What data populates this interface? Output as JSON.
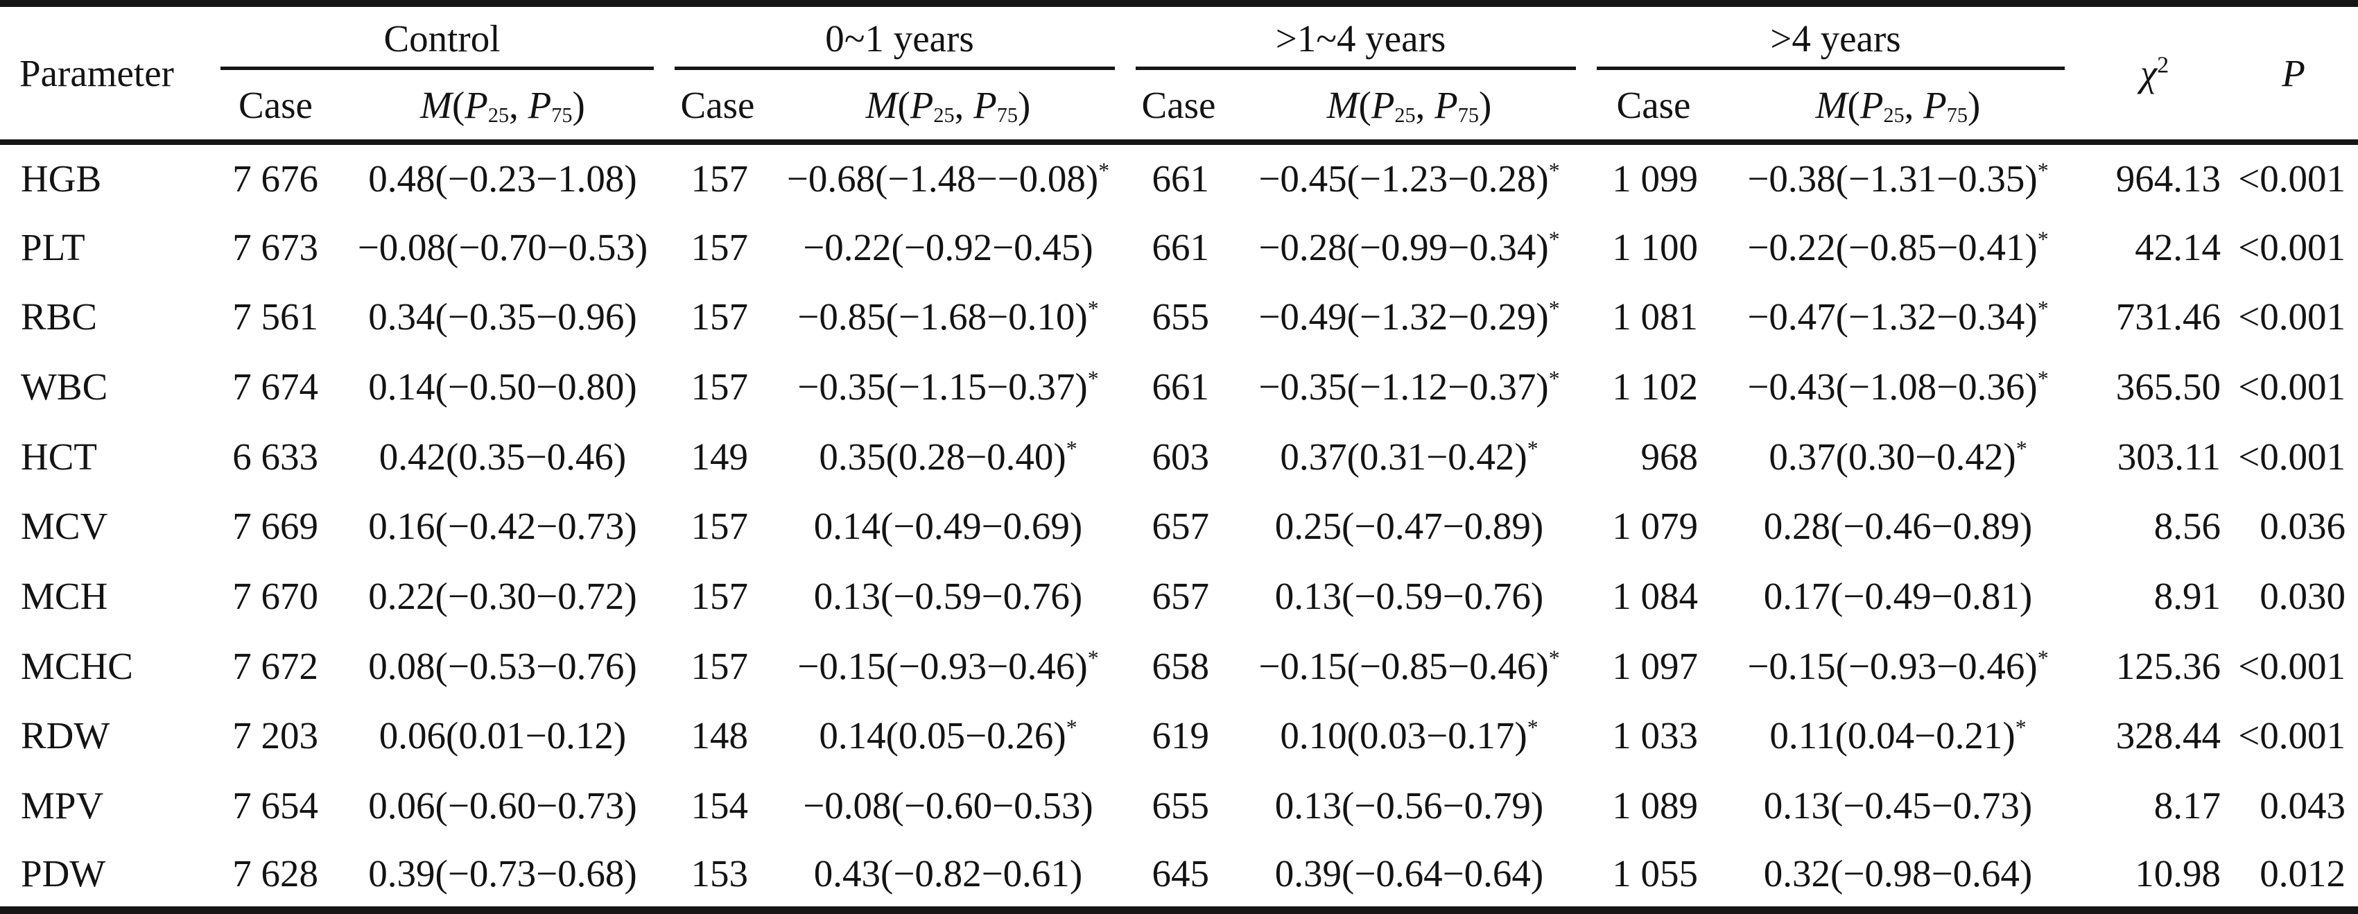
{
  "table": {
    "star_symbol": "*",
    "header": {
      "parameter": "Parameter",
      "groups": [
        "Control",
        "0~1 years",
        ">1~4 years",
        ">4 years"
      ],
      "case_label": "Case",
      "m": {
        "m": "M",
        "open": "(",
        "p": "P",
        "p25": "25",
        "comma": ", ",
        "p75": "75",
        "close": ")"
      },
      "chi2": {
        "chi": "χ",
        "sup": "2"
      },
      "p_label": "P"
    },
    "rows": [
      {
        "param": "HGB",
        "groups": [
          {
            "case": "7 676",
            "m": "0.48(−0.23−1.08)",
            "star": false
          },
          {
            "case": "157",
            "m": "−0.68(−1.48−−0.08)",
            "star": true
          },
          {
            "case": "661",
            "m": "−0.45(−1.23−0.28)",
            "star": true
          },
          {
            "case": "1 099",
            "m": "−0.38(−1.31−0.35)",
            "star": true
          }
        ],
        "chi2": "964.13",
        "p": "<0.001"
      },
      {
        "param": "PLT",
        "groups": [
          {
            "case": "7 673",
            "m": "−0.08(−0.70−0.53)",
            "star": false
          },
          {
            "case": "157",
            "m": "−0.22(−0.92−0.45)",
            "star": false
          },
          {
            "case": "661",
            "m": "−0.28(−0.99−0.34)",
            "star": true
          },
          {
            "case": "1 100",
            "m": "−0.22(−0.85−0.41)",
            "star": true
          }
        ],
        "chi2": "42.14",
        "p": "<0.001"
      },
      {
        "param": "RBC",
        "groups": [
          {
            "case": "7 561",
            "m": "0.34(−0.35−0.96)",
            "star": false
          },
          {
            "case": "157",
            "m": "−0.85(−1.68−0.10)",
            "star": true
          },
          {
            "case": "655",
            "m": "−0.49(−1.32−0.29)",
            "star": true
          },
          {
            "case": "1 081",
            "m": "−0.47(−1.32−0.34)",
            "star": true
          }
        ],
        "chi2": "731.46",
        "p": "<0.001"
      },
      {
        "param": "WBC",
        "groups": [
          {
            "case": "7 674",
            "m": "0.14(−0.50−0.80)",
            "star": false
          },
          {
            "case": "157",
            "m": "−0.35(−1.15−0.37)",
            "star": true
          },
          {
            "case": "661",
            "m": "−0.35(−1.12−0.37)",
            "star": true
          },
          {
            "case": "1 102",
            "m": "−0.43(−1.08−0.36)",
            "star": true
          }
        ],
        "chi2": "365.50",
        "p": "<0.001"
      },
      {
        "param": "HCT",
        "groups": [
          {
            "case": "6 633",
            "m": "0.42(0.35−0.46)",
            "star": false
          },
          {
            "case": "149",
            "m": "0.35(0.28−0.40)",
            "star": true
          },
          {
            "case": "603",
            "m": "0.37(0.31−0.42)",
            "star": true
          },
          {
            "case": "968",
            "m": "0.37(0.30−0.42)",
            "star": true
          }
        ],
        "chi2": "303.11",
        "p": "<0.001"
      },
      {
        "param": "MCV",
        "groups": [
          {
            "case": "7 669",
            "m": "0.16(−0.42−0.73)",
            "star": false
          },
          {
            "case": "157",
            "m": "0.14(−0.49−0.69)",
            "star": false
          },
          {
            "case": "657",
            "m": "0.25(−0.47−0.89)",
            "star": false
          },
          {
            "case": "1 079",
            "m": "0.28(−0.46−0.89)",
            "star": false
          }
        ],
        "chi2": "8.56",
        "p": "0.036"
      },
      {
        "param": "MCH",
        "groups": [
          {
            "case": "7 670",
            "m": "0.22(−0.30−0.72)",
            "star": false
          },
          {
            "case": "157",
            "m": "0.13(−0.59−0.76)",
            "star": false
          },
          {
            "case": "657",
            "m": "0.13(−0.59−0.76)",
            "star": false
          },
          {
            "case": "1 084",
            "m": "0.17(−0.49−0.81)",
            "star": false
          }
        ],
        "chi2": "8.91",
        "p": "0.030"
      },
      {
        "param": "MCHC",
        "groups": [
          {
            "case": "7 672",
            "m": "0.08(−0.53−0.76)",
            "star": false
          },
          {
            "case": "157",
            "m": "−0.15(−0.93−0.46)",
            "star": true
          },
          {
            "case": "658",
            "m": "−0.15(−0.85−0.46)",
            "star": true
          },
          {
            "case": "1 097",
            "m": "−0.15(−0.93−0.46)",
            "star": true
          }
        ],
        "chi2": "125.36",
        "p": "<0.001"
      },
      {
        "param": "RDW",
        "groups": [
          {
            "case": "7 203",
            "m": "0.06(0.01−0.12)",
            "star": false
          },
          {
            "case": "148",
            "m": "0.14(0.05−0.26)",
            "star": true
          },
          {
            "case": "619",
            "m": "0.10(0.03−0.17)",
            "star": true
          },
          {
            "case": "1 033",
            "m": "0.11(0.04−0.21)",
            "star": true
          }
        ],
        "chi2": "328.44",
        "p": "<0.001"
      },
      {
        "param": "MPV",
        "groups": [
          {
            "case": "7 654",
            "m": "0.06(−0.60−0.73)",
            "star": false
          },
          {
            "case": "154",
            "m": "−0.08(−0.60−0.53)",
            "star": false
          },
          {
            "case": "655",
            "m": "0.13(−0.56−0.79)",
            "star": false
          },
          {
            "case": "1 089",
            "m": "0.13(−0.45−0.73)",
            "star": false
          }
        ],
        "chi2": "8.17",
        "p": "0.043"
      },
      {
        "param": "PDW",
        "groups": [
          {
            "case": "7 628",
            "m": "0.39(−0.73−0.68)",
            "star": false
          },
          {
            "case": "153",
            "m": "0.43(−0.82−0.61)",
            "star": false
          },
          {
            "case": "645",
            "m": "0.39(−0.64−0.64)",
            "star": false
          },
          {
            "case": "1 055",
            "m": "0.32(−0.98−0.64)",
            "star": false
          }
        ],
        "chi2": "10.98",
        "p": "0.012"
      }
    ]
  }
}
